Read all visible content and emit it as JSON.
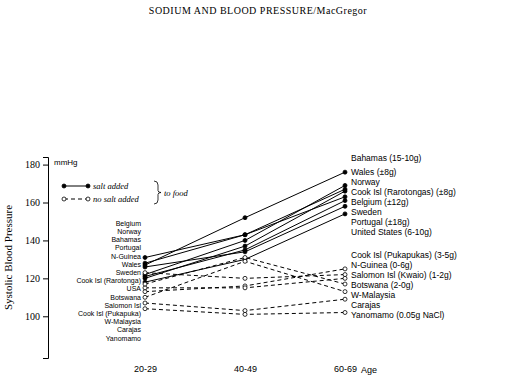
{
  "chart_data": {
    "type": "line",
    "title": "SODIUM AND BLOOD PRESSURE/MacGregor",
    "y_label": "Systolic Blood Pressure",
    "y_unit": "mmHg",
    "x_label": "Age",
    "categories": [
      "20-29",
      "40-49",
      "60-69"
    ],
    "ylim": [
      78,
      184
    ],
    "yticks": [
      100,
      120,
      140,
      160,
      180
    ],
    "grid": false,
    "legend": "upper-left",
    "legend_entries": [
      {
        "label": "salt added",
        "line_style": "solid",
        "marker": "circle"
      },
      {
        "label": "no salt added",
        "line_style": "dashed",
        "marker": "open-circle"
      }
    ],
    "legend_note": "to food",
    "series": [
      {
        "name": "Bahamas (15-10g)",
        "start_label": "Bahamas",
        "color": "#000000",
        "line_style": "solid",
        "marker": "circle",
        "values": [
          127,
          152,
          176
        ]
      },
      {
        "name": "Wales (±8g)",
        "start_label": "Wales",
        "color": "#000000",
        "line_style": "solid",
        "marker": "circle",
        "values": [
          122,
          140,
          169
        ]
      },
      {
        "name": "Norway",
        "start_label": "Norway",
        "color": "#000000",
        "line_style": "solid",
        "marker": "circle",
        "values": [
          128,
          143,
          167
        ]
      },
      {
        "name": "Cook Isl (Rarotongas) (±8g)",
        "start_label": "Cook Isl (Rarotonga)",
        "color": "#000000",
        "line_style": "solid",
        "marker": "circle",
        "values": [
          120,
          137,
          166
        ]
      },
      {
        "name": "Belgium (±12g)",
        "start_label": "Belgium",
        "color": "#000000",
        "line_style": "solid",
        "marker": "circle",
        "values": [
          131,
          143,
          163
        ]
      },
      {
        "name": "Sweden",
        "start_label": "Sweden",
        "color": "#000000",
        "line_style": "solid",
        "marker": "circle",
        "values": [
          121,
          135,
          161
        ]
      },
      {
        "name": "Portugal (±18g)",
        "start_label": "Portugal",
        "color": "#000000",
        "line_style": "solid",
        "marker": "circle",
        "values": [
          126,
          134,
          158
        ]
      },
      {
        "name": "United States (6-10g)",
        "start_label": "USA",
        "color": "#000000",
        "line_style": "solid",
        "marker": "circle",
        "values": [
          118,
          130,
          154
        ]
      },
      {
        "name": "Cook Isl (Pukapukas) (3-5g)",
        "start_label": "Cook Isl (Pukapuka)",
        "color": "#000000",
        "line_style": "dashed",
        "marker": "open-circle",
        "values": [
          113,
          116,
          125
        ]
      },
      {
        "name": "N-Guinea (0-6g)",
        "start_label": "N-Guinea",
        "color": "#000000",
        "line_style": "dashed",
        "marker": "open-circle",
        "values": [
          123,
          120,
          122
        ]
      },
      {
        "name": "Salomon Isl (Kwaio) (1-2g)",
        "start_label": "Salomon Isl",
        "color": "#000000",
        "line_style": "dashed",
        "marker": "open-circle",
        "values": [
          115,
          115,
          120
        ]
      },
      {
        "name": "Botswana (2-0g)",
        "start_label": "Botswana",
        "color": "#000000",
        "line_style": "dashed",
        "marker": "open-circle",
        "values": [
          117,
          131,
          117
        ]
      },
      {
        "name": "W-Malaysia",
        "start_label": "W-Malaysia",
        "color": "#000000",
        "line_style": "dashed",
        "marker": "open-circle",
        "values": [
          110,
          129,
          113
        ]
      },
      {
        "name": "Carajas",
        "start_label": "Carajas",
        "color": "#000000",
        "line_style": "dashed",
        "marker": "open-circle",
        "values": [
          107,
          103,
          109
        ]
      },
      {
        "name": "Yanomamo (0.05g NaCl)",
        "start_label": "Yanomamo",
        "color": "#000000",
        "line_style": "dashed",
        "marker": "open-circle",
        "values": [
          104,
          101,
          102
        ]
      }
    ]
  }
}
